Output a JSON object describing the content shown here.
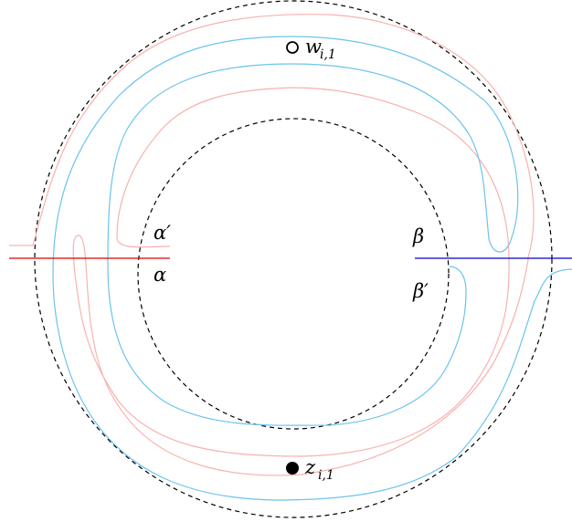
{
  "labels": {
    "alpha_prime": "α′",
    "alpha": "α",
    "beta": "β",
    "beta_prime": "β′",
    "w_point": {
      "main": "w",
      "sub": "i,1"
    },
    "z_point": {
      "main": "z",
      "sub": "i,1"
    }
  },
  "colors": {
    "alpha_line": "#dd0000",
    "beta_line": "#0000cc",
    "blue_curve": "#6cc3ec",
    "red_curve": "#f7b2ae",
    "circle": "#000000"
  }
}
